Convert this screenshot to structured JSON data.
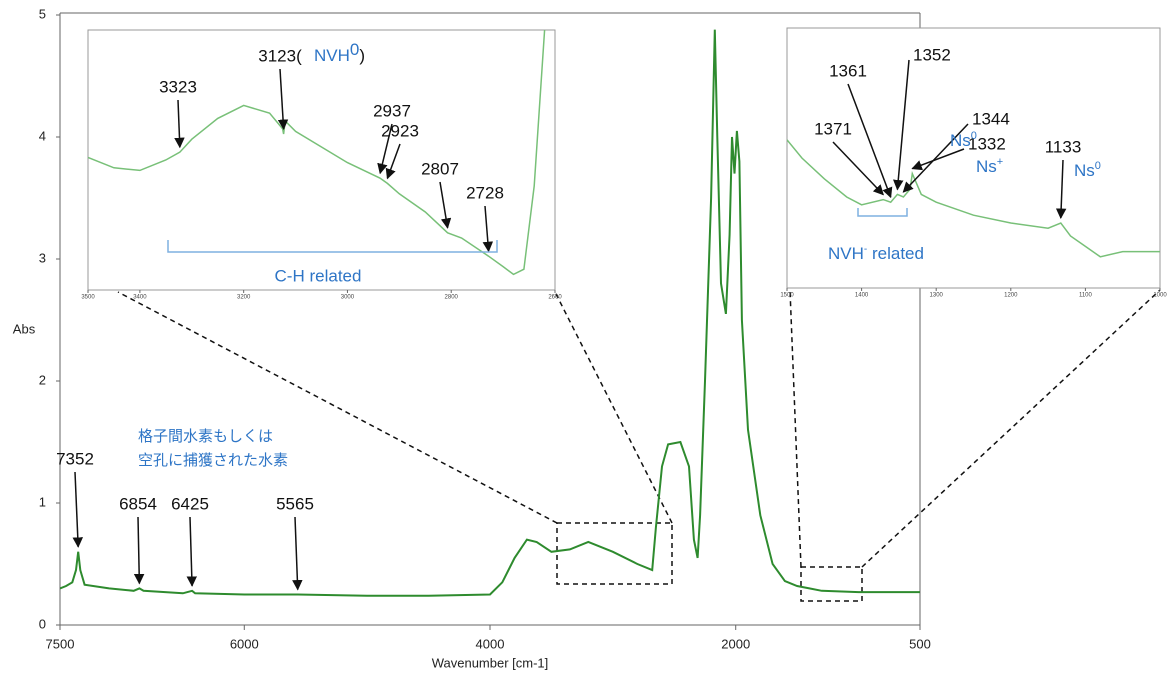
{
  "chart_data": [
    {
      "type": "line",
      "xlabel": "Wavenumber [cm-1]",
      "ylabel": "Abs",
      "color": "#2e8b2e",
      "xlim": [
        7500,
        500
      ],
      "xticks": [
        7500,
        6000,
        4000,
        2000,
        500
      ],
      "ylim": [
        0,
        5
      ],
      "yticks": [
        0,
        1,
        2,
        3,
        4,
        5
      ],
      "x": [
        7500,
        7450,
        7400,
        7370,
        7352,
        7335,
        7300,
        7100,
        6900,
        6854,
        6820,
        6500,
        6425,
        6400,
        6000,
        5565,
        5000,
        4500,
        4000,
        3900,
        3800,
        3700,
        3620,
        3500,
        3350,
        3200,
        3000,
        2800,
        2680,
        2650,
        2600,
        2550,
        2450,
        2380,
        2340,
        2310,
        2290,
        2250,
        2200,
        2170,
        2150,
        2120,
        2080,
        2050,
        2030,
        2010,
        1990,
        1970,
        1950,
        1900,
        1800,
        1700,
        1600,
        1500,
        1400,
        1300,
        1000,
        500
      ],
      "values": [
        0.3,
        0.32,
        0.35,
        0.45,
        0.6,
        0.45,
        0.33,
        0.3,
        0.28,
        0.3,
        0.28,
        0.26,
        0.28,
        0.26,
        0.25,
        0.25,
        0.24,
        0.24,
        0.25,
        0.35,
        0.55,
        0.7,
        0.68,
        0.6,
        0.62,
        0.68,
        0.6,
        0.5,
        0.45,
        0.8,
        1.3,
        1.48,
        1.5,
        1.3,
        0.7,
        0.55,
        0.9,
        2.0,
        3.5,
        4.88,
        4.0,
        2.8,
        2.55,
        3.2,
        4.0,
        3.7,
        4.05,
        3.8,
        2.5,
        1.6,
        0.9,
        0.5,
        0.36,
        0.32,
        0.3,
        0.28,
        0.27,
        0.27
      ],
      "annotations": [
        {
          "x": 7352,
          "label": "7352"
        },
        {
          "x": 6854,
          "label": "6854"
        },
        {
          "x": 6425,
          "label": "6425"
        },
        {
          "x": 5565,
          "label": "5565"
        }
      ],
      "note": [
        "格子間水素もしくは",
        "空孔に捕獲された水素"
      ]
    },
    {
      "type": "line",
      "color": "#78c078",
      "xlim": [
        3500,
        2600
      ],
      "xticks": [
        3500,
        3400,
        3200,
        3000,
        2800,
        2600
      ],
      "ylim": [
        0,
        1
      ],
      "x": [
        3500,
        3450,
        3400,
        3350,
        3323,
        3300,
        3250,
        3200,
        3150,
        3125,
        3123,
        3120,
        3100,
        3000,
        2937,
        2923,
        2900,
        2850,
        2807,
        2780,
        2728,
        2700,
        2680,
        2660,
        2640,
        2620
      ],
      "values": [
        0.51,
        0.47,
        0.46,
        0.5,
        0.53,
        0.58,
        0.66,
        0.71,
        0.68,
        0.62,
        0.6,
        0.65,
        0.61,
        0.49,
        0.43,
        0.41,
        0.37,
        0.3,
        0.22,
        0.2,
        0.13,
        0.09,
        0.06,
        0.08,
        0.4,
        1.0
      ],
      "annotations": [
        {
          "x": 3323,
          "label": "3323"
        },
        {
          "x": 3123,
          "label": "3123("
        },
        {
          "x": 2937,
          "label": "2937"
        },
        {
          "x": 2923,
          "label": "2923"
        },
        {
          "x": 2807,
          "label": "2807"
        },
        {
          "x": 2728,
          "label": "2728"
        }
      ],
      "notes": {
        "nvh": "NVH",
        "nvh_sup": "0",
        "close": ")",
        "ch": "C-H related"
      }
    },
    {
      "type": "line",
      "color": "#78c078",
      "xlim": [
        1500,
        1000
      ],
      "xticks": [
        1500,
        1400,
        1300,
        1200,
        1100,
        1000
      ],
      "ylim": [
        0,
        1
      ],
      "x": [
        1500,
        1480,
        1450,
        1420,
        1400,
        1371,
        1361,
        1352,
        1344,
        1335,
        1332,
        1320,
        1300,
        1250,
        1200,
        1150,
        1133,
        1120,
        1100,
        1080,
        1050,
        1000
      ],
      "values": [
        0.57,
        0.5,
        0.42,
        0.35,
        0.32,
        0.34,
        0.33,
        0.36,
        0.35,
        0.38,
        0.44,
        0.36,
        0.33,
        0.28,
        0.25,
        0.23,
        0.25,
        0.2,
        0.16,
        0.12,
        0.14,
        0.14
      ],
      "annotations": [
        {
          "x": 1371,
          "label": "1371"
        },
        {
          "x": 1361,
          "label": "1361"
        },
        {
          "x": 1352,
          "label": "1352"
        },
        {
          "x": 1344,
          "label": "1344"
        },
        {
          "x": 1332,
          "label": "1332"
        },
        {
          "x": 1133,
          "label": "1133"
        }
      ],
      "notes": {
        "ns_a": "Ns",
        "ns_a_sup": "0",
        "ns_b": "Ns",
        "ns_b_sup": "+",
        "ns_c": "Ns",
        "ns_c_sup": "0",
        "nvh": "NVH",
        "nvh_sup": "-",
        "related": " related"
      }
    }
  ]
}
